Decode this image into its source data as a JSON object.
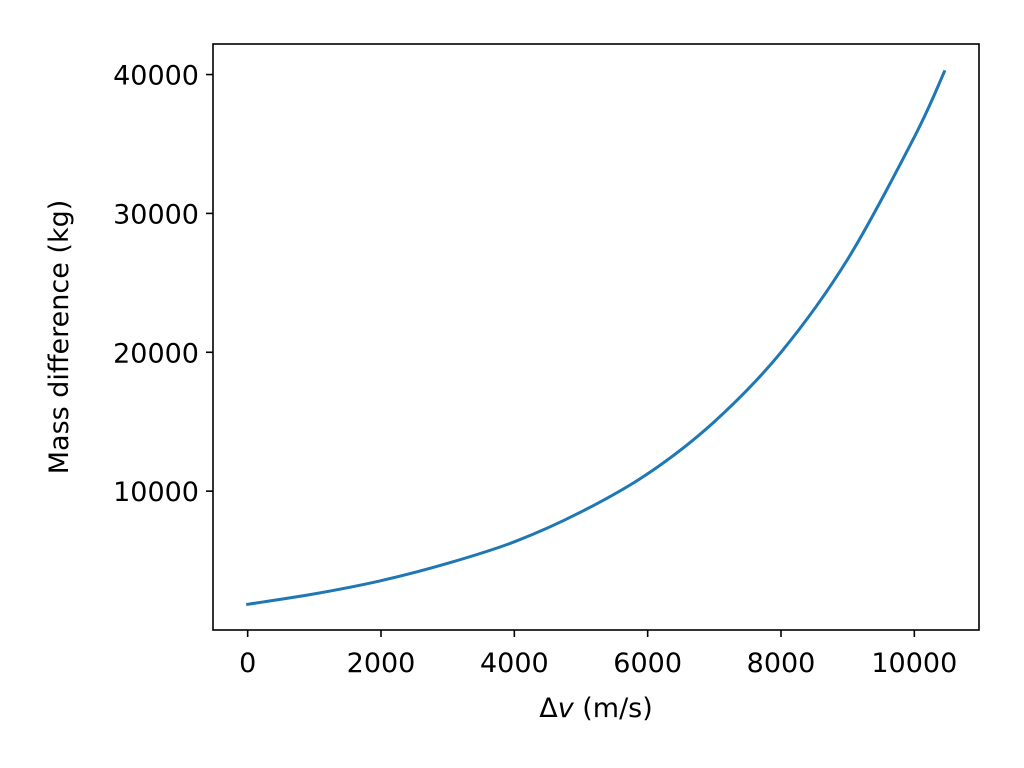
{
  "chart_data": {
    "type": "line",
    "title": "",
    "xlabel": {
      "delta": "Δ",
      "var": "v",
      "unit": " (m/s)"
    },
    "ylabel": "Mass difference (kg)",
    "xlim": [
      -520,
      10970
    ],
    "ylim": [
      0,
      42200
    ],
    "xticks": [
      0,
      2000,
      4000,
      6000,
      8000,
      10000
    ],
    "yticks": [
      10000,
      20000,
      30000,
      40000
    ],
    "xtick_labels": [
      "0",
      "2000",
      "4000",
      "6000",
      "8000",
      "10000"
    ],
    "ytick_labels": [
      "10000",
      "20000",
      "30000",
      "40000"
    ],
    "grid": false,
    "series": [
      {
        "color": "#1f77b4",
        "x": [
          0,
          1000,
          2000,
          3000,
          4000,
          5000,
          6000,
          7000,
          8000,
          9000,
          10000,
          10450
        ],
        "y": [
          1850,
          2600,
          3550,
          4800,
          6350,
          8500,
          11250,
          15000,
          20000,
          26700,
          35500,
          40200
        ]
      }
    ]
  }
}
